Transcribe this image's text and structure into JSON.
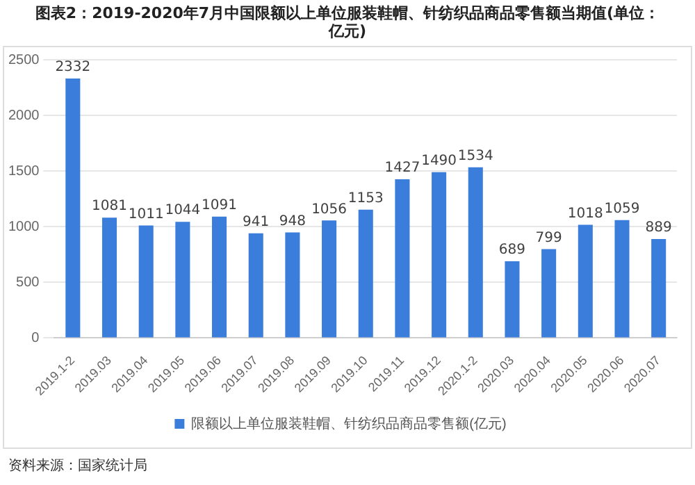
{
  "chart_data": {
    "type": "bar",
    "title": "图表2：2019-2020年7月中国限额以上单位服装鞋帽、针纺织品商品零售额当期值(单位：亿元)",
    "categories": [
      "2019.1-2",
      "2019.03",
      "2019.04",
      "2019.05",
      "2019.06",
      "2019.07",
      "2019.08",
      "2019.09",
      "2019.10",
      "2019.11",
      "2019.12",
      "2020.1-2",
      "2020.03",
      "2020.04",
      "2020.05",
      "2020.06",
      "2020.07"
    ],
    "series": [
      {
        "name": "限额以上单位服装鞋帽、针纺织品商品零售额(亿元)",
        "color": "#3a7ddb",
        "values": [
          2332,
          1081,
          1011,
          1044,
          1091,
          941,
          948,
          1056,
          1153,
          1427,
          1490,
          1534,
          689,
          799,
          1018,
          1059,
          889
        ]
      }
    ],
    "ylim": [
      0,
      2500
    ],
    "yticks": [
      0,
      500,
      1000,
      1500,
      2000,
      2500
    ],
    "grid": "y",
    "legend": "bottom",
    "data_labels": true,
    "annotations": [
      "资料来源：国家统计局"
    ]
  }
}
